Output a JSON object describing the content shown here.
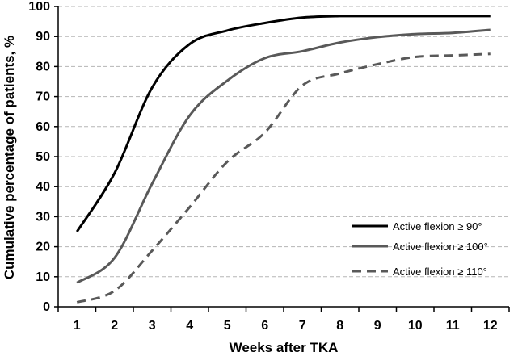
{
  "chart_data": {
    "type": "line",
    "title": "",
    "xlabel": "Weeks after TKA",
    "ylabel": "Cumulative percentage of patients, %",
    "x": [
      1,
      2,
      3,
      4,
      5,
      6,
      7,
      8,
      9,
      10,
      11,
      12
    ],
    "xlim": [
      0.5,
      12.5
    ],
    "ylim": [
      0,
      100
    ],
    "yticks": [
      0,
      10,
      20,
      30,
      40,
      50,
      60,
      70,
      80,
      90,
      100
    ],
    "grid": "horizontal dashed",
    "legend_position": "bottom-right",
    "series": [
      {
        "name": "Active flexion ≥ 90°",
        "style": "solid",
        "color": "#000000",
        "values": [
          25,
          44.5,
          73,
          87.5,
          92,
          94.5,
          96.3,
          96.8,
          96.8,
          96.8,
          96.8,
          96.8
        ]
      },
      {
        "name": "Active flexion ≥ 100°",
        "style": "solid",
        "color": "#595959",
        "values": [
          8,
          16.3,
          41,
          63.7,
          75.3,
          82.8,
          85.1,
          88,
          89.8,
          90.8,
          91.2,
          92.2
        ]
      },
      {
        "name": "Active flexion ≥ 110°",
        "style": "dashed",
        "color": "#595959",
        "values": [
          1.5,
          5.3,
          18.7,
          33.2,
          48.3,
          58,
          73.7,
          77.7,
          80.8,
          83.2,
          83.7,
          84.2
        ]
      }
    ]
  }
}
